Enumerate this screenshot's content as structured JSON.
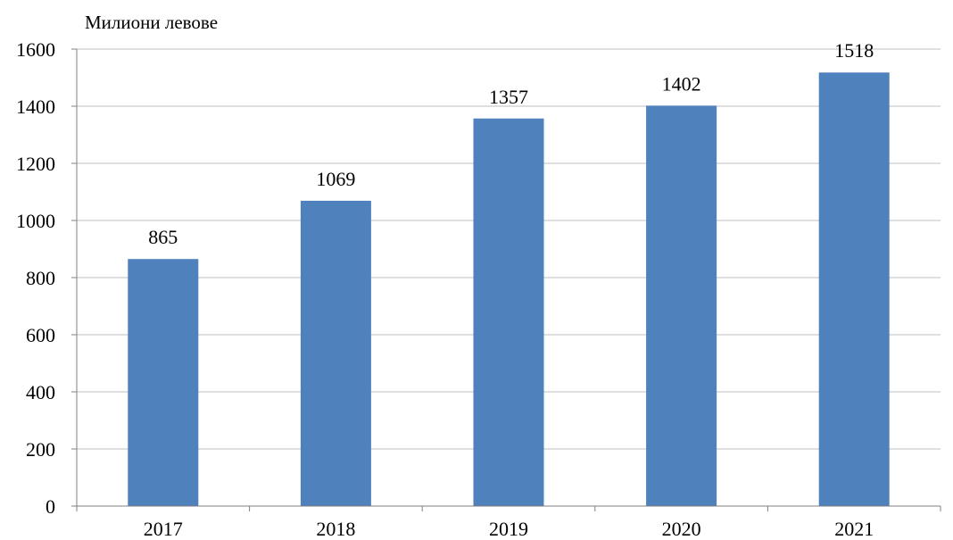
{
  "chart_data": {
    "type": "bar",
    "ylabel": "Милиони левове",
    "xlabel": "",
    "categories": [
      "2017",
      "2018",
      "2019",
      "2020",
      "2021"
    ],
    "values": [
      865,
      1069,
      1357,
      1402,
      1518
    ],
    "data_labels": [
      "865",
      "1069",
      "1357",
      "1402",
      "1518"
    ],
    "ylim": [
      0,
      1600
    ],
    "yticks": [
      "0",
      "200",
      "400",
      "600",
      "800",
      "1000",
      "1200",
      "1400",
      "1600"
    ],
    "grid": true,
    "legend": "none",
    "colors": {
      "bar": "#4F81BD",
      "grid": "#BFBFBF",
      "axis": "#808080"
    }
  }
}
